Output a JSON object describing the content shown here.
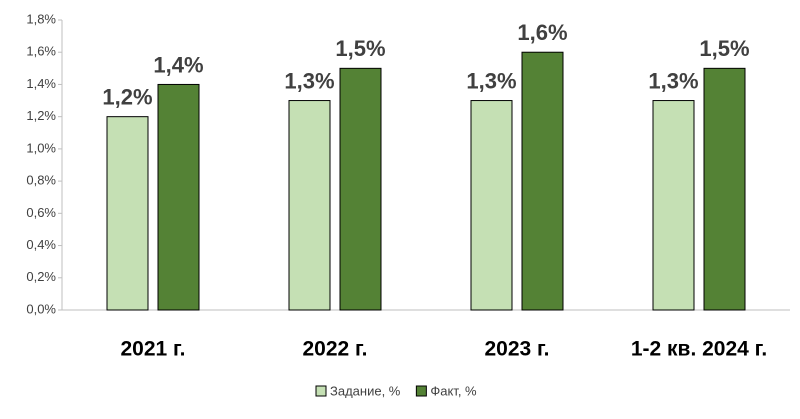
{
  "chart_data": {
    "type": "bar",
    "categories": [
      "2021 г.",
      "2022 г.",
      "2023 г.",
      "1-2 кв. 2024 г."
    ],
    "series": [
      {
        "name": "Задание, %",
        "color": "#c5e0b4",
        "values": [
          1.2,
          1.3,
          1.3,
          1.3
        ],
        "value_labels": [
          "1,2%",
          "1,3%",
          "1,3%",
          "1,3%"
        ]
      },
      {
        "name": "Факт, %",
        "color": "#548235",
        "values": [
          1.4,
          1.5,
          1.6,
          1.5
        ],
        "value_labels": [
          "1,4%",
          "1,5%",
          "1,6%",
          "1,5%"
        ]
      }
    ],
    "ylim": [
      0,
      1.8
    ],
    "yticks": [
      {
        "value": 0,
        "label": "0,0%"
      },
      {
        "value": 0.2,
        "label": "0,2%"
      },
      {
        "value": 0.4,
        "label": "0,4%"
      },
      {
        "value": 0.6,
        "label": "0,6%"
      },
      {
        "value": 0.8,
        "label": "0,8%"
      },
      {
        "value": 1.0,
        "label": "1,0%"
      },
      {
        "value": 1.2,
        "label": "1,2%"
      },
      {
        "value": 1.4,
        "label": "1,4%"
      },
      {
        "value": 1.6,
        "label": "1,6%"
      },
      {
        "value": 1.8,
        "label": "1,8%"
      }
    ],
    "grid": false,
    "legend": "bottom"
  }
}
